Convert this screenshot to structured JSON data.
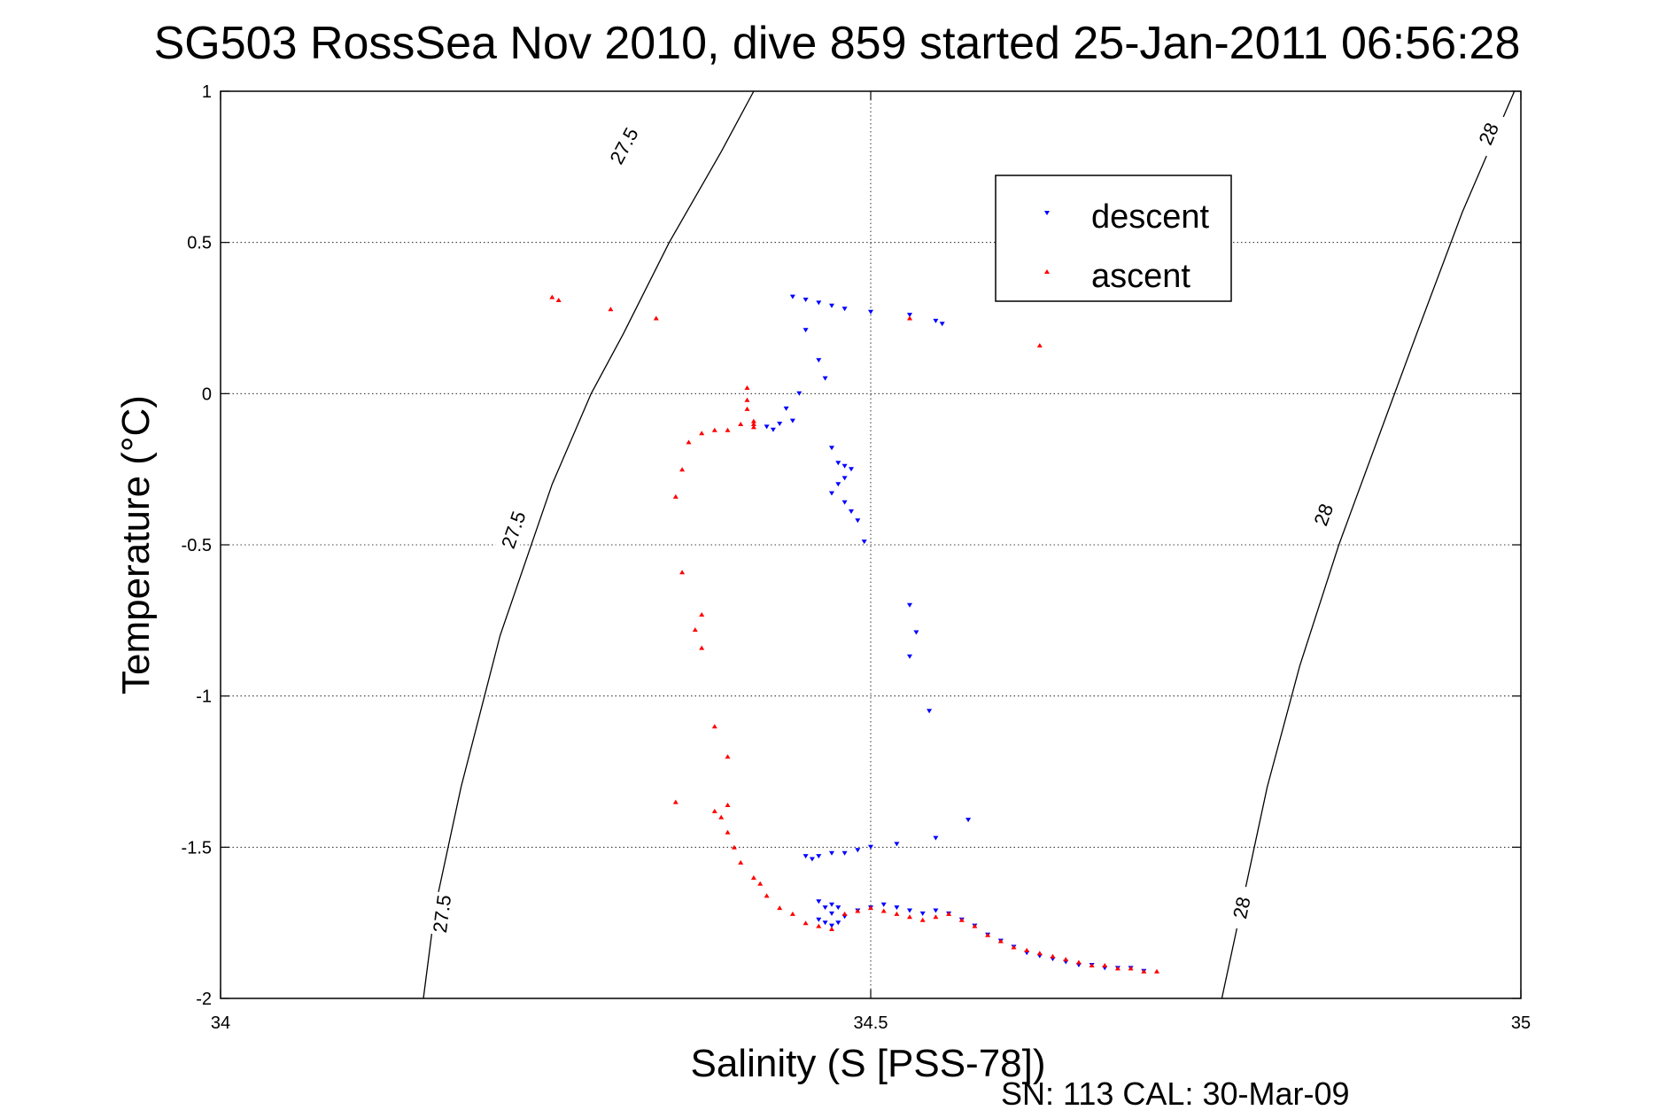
{
  "chart_data": {
    "type": "scatter",
    "title": "SG503 RossSea Nov 2010, dive 859 started 25-Jan-2011 06:56:28",
    "xlabel": "Salinity (S [PSS-78])",
    "ylabel": "Temperature (°C)",
    "footer": "SN: 113  CAL: 30-Mar-09",
    "xlim": [
      34,
      35
    ],
    "ylim": [
      -2,
      1
    ],
    "xticks": [
      "34",
      "34.5",
      "35"
    ],
    "yticks": [
      "1",
      "0.5",
      "0",
      "-0.5",
      "-1",
      "-1.5",
      "-2"
    ],
    "grid": true,
    "legend_placement": "top-right",
    "colors": {
      "descent": "#0000ff",
      "ascent": "#ff0000",
      "contour": "#000000"
    },
    "density_contours": [
      {
        "level": "27.5",
        "points": [
          [
            34.156,
            -2.0
          ],
          [
            34.165,
            -1.7
          ],
          [
            34.185,
            -1.3
          ],
          [
            34.215,
            -0.8
          ],
          [
            34.255,
            -0.3
          ],
          [
            34.285,
            0.0
          ],
          [
            34.31,
            0.2
          ],
          [
            34.345,
            0.5
          ],
          [
            34.385,
            0.8
          ],
          [
            34.41,
            1.0
          ]
        ],
        "labels": [
          [
            34.17,
            -1.72
          ],
          [
            34.225,
            -0.45
          ],
          [
            34.31,
            0.82
          ]
        ]
      },
      {
        "level": "28",
        "points": [
          [
            34.77,
            -2.0
          ],
          [
            34.785,
            -1.7
          ],
          [
            34.805,
            -1.3
          ],
          [
            34.83,
            -0.9
          ],
          [
            34.86,
            -0.5
          ],
          [
            34.89,
            -0.15
          ],
          [
            34.92,
            0.2
          ],
          [
            34.955,
            0.6
          ],
          [
            34.995,
            1.0
          ]
        ],
        "labels": [
          [
            34.785,
            -1.7
          ],
          [
            34.848,
            -0.4
          ],
          [
            34.975,
            0.86
          ]
        ]
      }
    ],
    "series": [
      {
        "name": "descent",
        "marker": "triangle-down",
        "x": [
          34.44,
          34.45,
          34.46,
          34.47,
          34.48,
          34.5,
          34.53,
          34.55,
          34.555,
          34.45,
          34.46,
          34.465,
          34.445,
          34.435,
          34.44,
          34.43,
          34.42,
          34.425,
          34.47,
          34.475,
          34.48,
          34.485,
          34.48,
          34.475,
          34.47,
          34.48,
          34.485,
          34.49,
          34.495,
          34.53,
          34.535,
          34.53,
          34.545,
          34.575,
          34.45,
          34.455,
          34.46,
          34.47,
          34.48,
          34.49,
          34.5,
          34.52,
          34.55,
          34.46,
          34.465,
          34.47,
          34.46,
          34.465,
          34.47,
          34.475,
          34.48,
          34.47,
          34.475,
          34.49,
          34.5,
          34.51,
          34.52,
          34.53,
          34.54,
          34.55,
          34.56,
          34.57,
          34.58,
          34.59,
          34.6,
          34.61,
          34.62,
          34.63,
          34.64,
          34.65,
          34.66,
          34.67,
          34.68,
          34.69,
          34.7,
          34.71
        ],
        "y": [
          0.32,
          0.31,
          0.3,
          0.29,
          0.28,
          0.27,
          0.26,
          0.24,
          0.23,
          0.21,
          0.11,
          0.05,
          0.0,
          -0.05,
          -0.09,
          -0.1,
          -0.11,
          -0.12,
          -0.18,
          -0.23,
          -0.24,
          -0.25,
          -0.28,
          -0.3,
          -0.33,
          -0.36,
          -0.39,
          -0.42,
          -0.49,
          -0.7,
          -0.79,
          -0.87,
          -1.05,
          -1.41,
          -1.53,
          -1.54,
          -1.53,
          -1.52,
          -1.52,
          -1.51,
          -1.5,
          -1.49,
          -1.47,
          -1.68,
          -1.7,
          -1.72,
          -1.74,
          -1.75,
          -1.76,
          -1.75,
          -1.73,
          -1.69,
          -1.7,
          -1.71,
          -1.7,
          -1.69,
          -1.7,
          -1.71,
          -1.72,
          -1.71,
          -1.72,
          -1.74,
          -1.76,
          -1.79,
          -1.81,
          -1.83,
          -1.85,
          -1.86,
          -1.87,
          -1.88,
          -1.89,
          -1.89,
          -1.9,
          -1.9,
          -1.9,
          -1.91
        ]
      },
      {
        "name": "ascent",
        "marker": "triangle-up",
        "x": [
          34.255,
          34.26,
          34.3,
          34.335,
          34.53,
          34.63,
          34.405,
          34.405,
          34.405,
          34.41,
          34.41,
          34.41,
          34.4,
          34.39,
          34.38,
          34.37,
          34.36,
          34.355,
          34.35,
          34.355,
          34.37,
          34.365,
          34.37,
          34.38,
          34.39,
          34.35,
          34.39,
          34.38,
          34.385,
          34.39,
          34.395,
          34.4,
          34.41,
          34.415,
          34.42,
          34.43,
          34.44,
          34.45,
          34.46,
          34.47,
          34.48,
          34.49,
          34.5,
          34.51,
          34.52,
          34.53,
          34.54,
          34.55,
          34.56,
          34.57,
          34.58,
          34.59,
          34.6,
          34.61,
          34.62,
          34.63,
          34.64,
          34.65,
          34.66,
          34.67,
          34.68,
          34.69,
          34.7,
          34.71,
          34.72
        ],
        "y": [
          0.32,
          0.31,
          0.28,
          0.25,
          0.25,
          0.16,
          0.02,
          -0.02,
          -0.05,
          -0.09,
          -0.1,
          -0.11,
          -0.1,
          -0.12,
          -0.12,
          -0.13,
          -0.16,
          -0.25,
          -0.34,
          -0.59,
          -0.73,
          -0.78,
          -0.84,
          -1.1,
          -1.2,
          -1.35,
          -1.36,
          -1.38,
          -1.4,
          -1.45,
          -1.5,
          -1.55,
          -1.6,
          -1.62,
          -1.66,
          -1.7,
          -1.72,
          -1.75,
          -1.76,
          -1.77,
          -1.72,
          -1.71,
          -1.7,
          -1.71,
          -1.72,
          -1.73,
          -1.74,
          -1.73,
          -1.72,
          -1.74,
          -1.76,
          -1.79,
          -1.81,
          -1.83,
          -1.84,
          -1.85,
          -1.86,
          -1.87,
          -1.88,
          -1.89,
          -1.89,
          -1.9,
          -1.9,
          -1.91,
          -1.91
        ]
      }
    ]
  }
}
